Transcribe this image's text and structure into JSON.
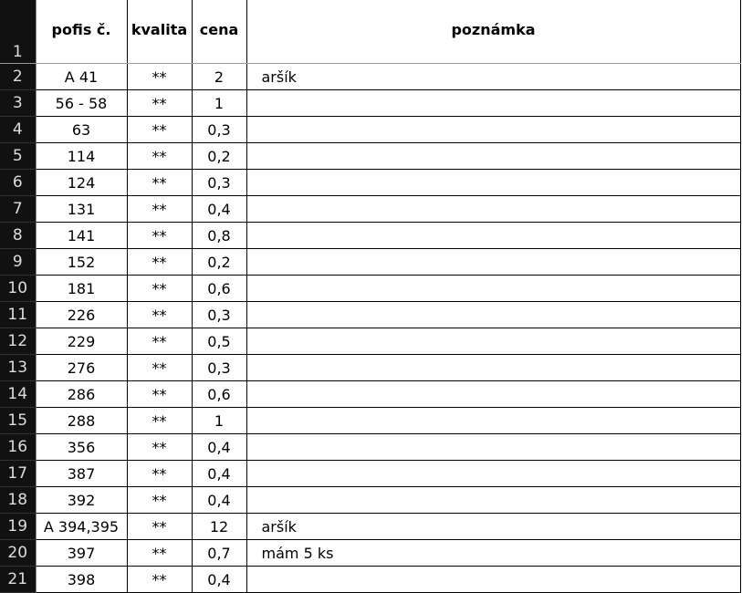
{
  "headers": {
    "row": "1",
    "a": "pofis č.",
    "b": "kvalita",
    "c": "cena",
    "d": "poznámka"
  },
  "rows": [
    {
      "n": "2",
      "a": "A 41",
      "b": "**",
      "c": "2",
      "d": "aršík"
    },
    {
      "n": "3",
      "a": "56 - 58",
      "b": "**",
      "c": "1",
      "d": ""
    },
    {
      "n": "4",
      "a": "63",
      "b": "**",
      "c": "0,3",
      "d": ""
    },
    {
      "n": "5",
      "a": "114",
      "b": "**",
      "c": "0,2",
      "d": ""
    },
    {
      "n": "6",
      "a": "124",
      "b": "**",
      "c": "0,3",
      "d": ""
    },
    {
      "n": "7",
      "a": "131",
      "b": "**",
      "c": "0,4",
      "d": ""
    },
    {
      "n": "8",
      "a": "141",
      "b": "**",
      "c": "0,8",
      "d": ""
    },
    {
      "n": "9",
      "a": "152",
      "b": "**",
      "c": "0,2",
      "d": ""
    },
    {
      "n": "10",
      "a": "181",
      "b": "**",
      "c": "0,6",
      "d": ""
    },
    {
      "n": "11",
      "a": "226",
      "b": "**",
      "c": "0,3",
      "d": ""
    },
    {
      "n": "12",
      "a": "229",
      "b": "**",
      "c": "0,5",
      "d": ""
    },
    {
      "n": "13",
      "a": "276",
      "b": "**",
      "c": "0,3",
      "d": ""
    },
    {
      "n": "14",
      "a": "286",
      "b": "**",
      "c": "0,6",
      "d": ""
    },
    {
      "n": "15",
      "a": "288",
      "b": "**",
      "c": "1",
      "d": ""
    },
    {
      "n": "16",
      "a": "356",
      "b": "**",
      "c": "0,4",
      "d": ""
    },
    {
      "n": "17",
      "a": "387",
      "b": "**",
      "c": "0,4",
      "d": ""
    },
    {
      "n": "18",
      "a": "392",
      "b": "**",
      "c": "0,4",
      "d": ""
    },
    {
      "n": "19",
      "a": "A 394,395",
      "b": "**",
      "c": "12",
      "d": "aršík"
    },
    {
      "n": "20",
      "a": "397",
      "b": "**",
      "c": "0,7",
      "d": "mám 5 ks"
    },
    {
      "n": "21",
      "a": "398",
      "b": "**",
      "c": "0,4",
      "d": ""
    }
  ]
}
